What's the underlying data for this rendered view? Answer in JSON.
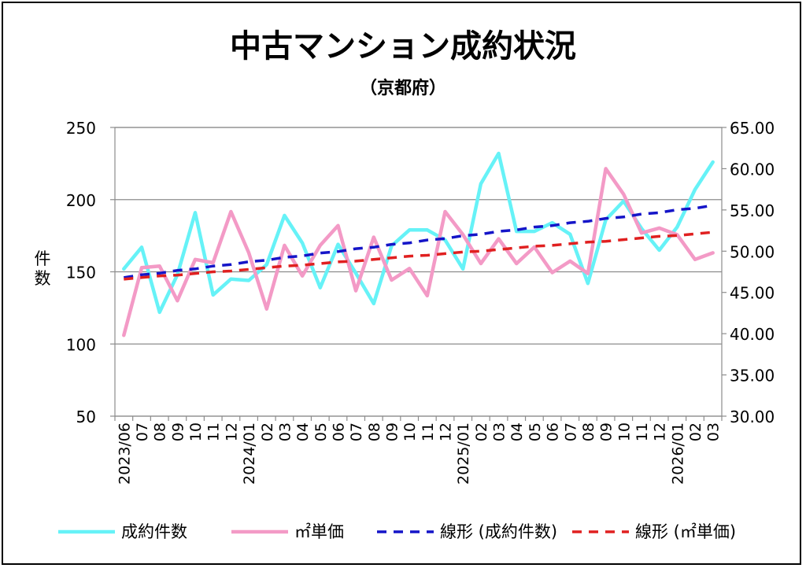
{
  "chart_data": {
    "type": "line",
    "title": "中古マンション成約状況",
    "subtitle": "（京都府）",
    "ylabel": "件数",
    "y2label": "",
    "ylim": [
      50,
      250
    ],
    "y_ticks": [
      "50",
      "100",
      "150",
      "200",
      "250"
    ],
    "y2lim": [
      30,
      65
    ],
    "y2_ticks": [
      "30.00",
      "35.00",
      "40.00",
      "45.00",
      "50.00",
      "55.00",
      "60.00",
      "65.00"
    ],
    "grid": true,
    "legend_position": "bottom",
    "categories": [
      "2023/06",
      "07",
      "08",
      "09",
      "10",
      "11",
      "12",
      "2024/01",
      "02",
      "03",
      "04",
      "05",
      "06",
      "07",
      "08",
      "09",
      "10",
      "11",
      "12",
      "2025/01",
      "02",
      "03",
      "04",
      "05",
      "06",
      "07",
      "08",
      "09",
      "10",
      "11",
      "12",
      "2026/01",
      "02",
      "03"
    ],
    "series": [
      {
        "name": "成約件数",
        "axis": "left",
        "color": "#66f2f7",
        "style": "solid",
        "values": [
          152,
          167,
          122,
          148,
          191,
          134,
          145,
          144,
          155,
          189,
          170,
          139,
          169,
          149,
          128,
          168,
          179,
          179,
          172,
          152,
          211,
          232,
          178,
          178,
          184,
          176,
          142,
          186,
          199,
          180,
          165,
          181,
          207,
          226
        ]
      },
      {
        "name": "㎡単価",
        "axis": "right",
        "color": "#f39ac6",
        "style": "solid",
        "values": [
          39.8,
          48.0,
          48.2,
          44.0,
          49.0,
          48.6,
          54.8,
          49.8,
          43.0,
          50.7,
          47.0,
          50.7,
          53.1,
          45.2,
          51.7,
          46.5,
          47.9,
          44.6,
          54.8,
          52.0,
          48.5,
          51.5,
          48.5,
          50.5,
          47.4,
          48.8,
          47.3,
          60.0,
          56.9,
          52.2,
          52.8,
          52.0,
          49.0,
          49.8
        ]
      },
      {
        "name": "線形 (成約件数)",
        "axis": "left",
        "color": "#1515c8",
        "style": "dashed",
        "values": [
          146,
          148,
          149,
          151,
          152,
          154,
          155,
          157,
          158,
          160,
          161,
          163,
          164,
          166,
          167,
          169,
          170,
          172,
          173,
          175,
          176,
          178,
          179,
          181,
          182,
          184,
          185,
          187,
          188,
          190,
          191,
          193,
          194,
          196
        ]
      },
      {
        "name": "線形 (㎡単価)",
        "axis": "right",
        "color": "#e02020",
        "style": "dashed",
        "values": [
          46.6,
          46.8,
          47.0,
          47.1,
          47.3,
          47.5,
          47.6,
          47.8,
          48.0,
          48.2,
          48.3,
          48.5,
          48.7,
          48.8,
          49.0,
          49.2,
          49.4,
          49.5,
          49.7,
          49.9,
          50.0,
          50.2,
          50.4,
          50.6,
          50.7,
          50.9,
          51.1,
          51.2,
          51.4,
          51.6,
          51.8,
          51.9,
          52.1,
          52.3
        ]
      }
    ]
  }
}
